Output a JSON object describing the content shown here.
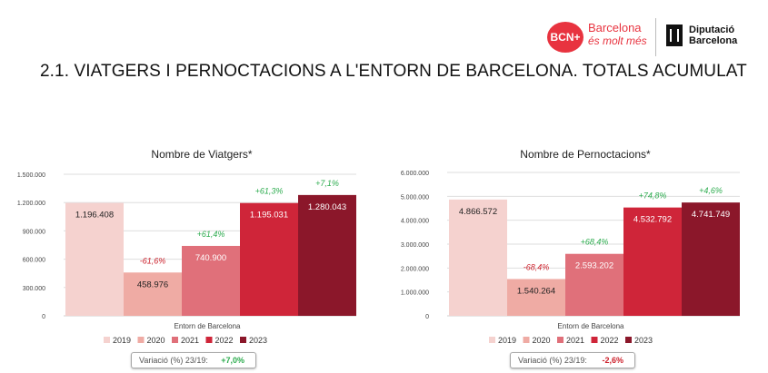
{
  "header": {
    "bcn_mark": "BCN+",
    "bcn_line1": "Barcelona",
    "bcn_line2": "és molt més",
    "dip_line1": "Diputació",
    "dip_line2": "Barcelona"
  },
  "page_title": "2.1. VIATGERS I PERNOCTACIONS A L'ENTORN DE BARCELONA. TOTALS ACUMULAT",
  "colors": {
    "2019": "#f5d2cf",
    "2020": "#efaba4",
    "2021": "#e0707a",
    "2022": "#cf2539",
    "2023": "#8b172a",
    "positive": "#2bab4d",
    "negative": "#cc1f2a"
  },
  "variation_boxes": [
    {
      "label": "Variació (%) 23/19:",
      "value": "+7,0%",
      "color": "#2bab4d"
    },
    {
      "label": "Variació (%) 23/19:",
      "value": "-2,6%",
      "color": "#cc1f2a"
    }
  ],
  "chart_data": [
    {
      "type": "bar",
      "title": "Nombre de Viatgers*",
      "categories": [
        "Entorn de Barcelona"
      ],
      "xlabel": "Entorn de Barcelona",
      "ylabel": "",
      "ylim": [
        0,
        1500000
      ],
      "yticks": [
        "0",
        "300.000",
        "600.000",
        "900.000",
        "1.200.000",
        "1.500.000"
      ],
      "grid": true,
      "legend_position": "bottom",
      "series": [
        {
          "name": "2019",
          "values": [
            1196408
          ],
          "label": "1.196.408",
          "change": ""
        },
        {
          "name": "2020",
          "values": [
            458976
          ],
          "label": "458.976",
          "change": "-61,6%"
        },
        {
          "name": "2021",
          "values": [
            740900
          ],
          "label": "740.900",
          "change": "+61,4%"
        },
        {
          "name": "2022",
          "values": [
            1195031
          ],
          "label": "1.195.031",
          "change": "+61,3%"
        },
        {
          "name": "2023",
          "values": [
            1280043
          ],
          "label": "1.280.043",
          "change": "+7,1%"
        }
      ]
    },
    {
      "type": "bar",
      "title": "Nombre de Pernoctacions*",
      "categories": [
        "Entorn de Barcelona"
      ],
      "xlabel": "Entorn de Barcelona",
      "ylabel": "",
      "ylim": [
        0,
        6000000
      ],
      "yticks": [
        "0",
        "1.000.000",
        "2.000.000",
        "3.000.000",
        "4.000.000",
        "5.000.000",
        "6.000.000"
      ],
      "grid": true,
      "legend_position": "bottom",
      "series": [
        {
          "name": "2019",
          "values": [
            4866572
          ],
          "label": "4.866.572",
          "change": ""
        },
        {
          "name": "2020",
          "values": [
            1540264
          ],
          "label": "1.540.264",
          "change": "-68,4%"
        },
        {
          "name": "2021",
          "values": [
            2593202
          ],
          "label": "2.593.202",
          "change": "+68,4%"
        },
        {
          "name": "2022",
          "values": [
            4532792
          ],
          "label": "4.532.792",
          "change": "+74,8%"
        },
        {
          "name": "2023",
          "values": [
            4741749
          ],
          "label": "4.741.749",
          "change": "+4,6%"
        }
      ]
    }
  ]
}
